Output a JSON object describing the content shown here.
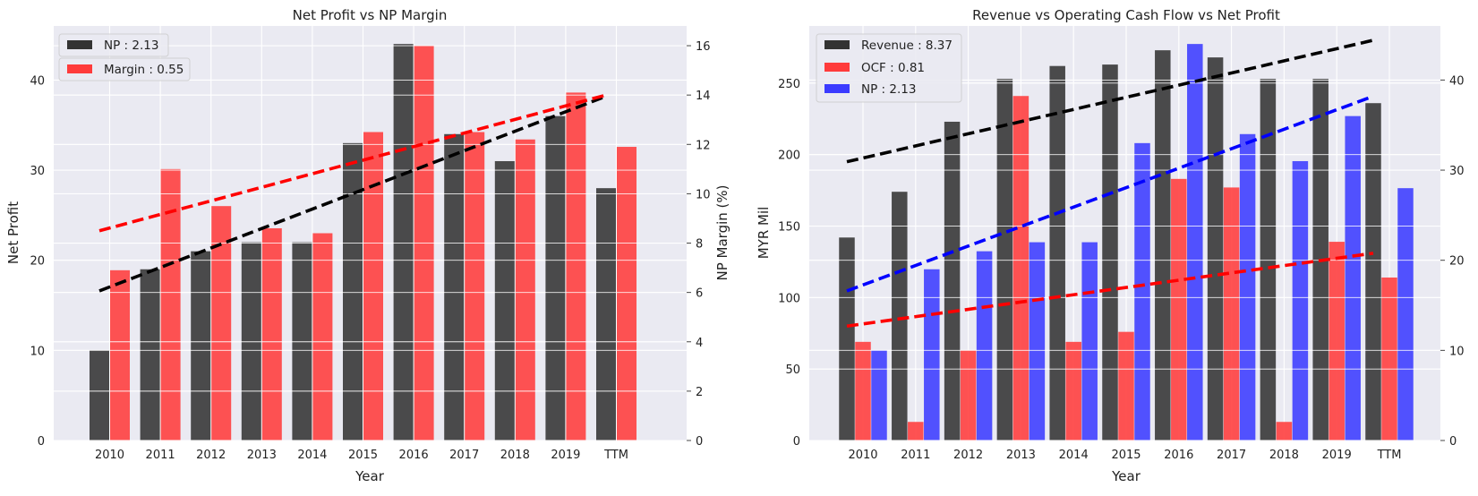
{
  "chart_data": [
    {
      "type": "bar",
      "title": "Net Profit vs NP Margin",
      "xlabel": "Year",
      "ylabel": "Net Profit",
      "y2label": "NP Margin (%)",
      "categories": [
        "2010",
        "2011",
        "2012",
        "2013",
        "2014",
        "2015",
        "2016",
        "2017",
        "2018",
        "2019",
        "TTM"
      ],
      "ylim": [
        0,
        46
      ],
      "y2lim": [
        0,
        16.8
      ],
      "yticks": [
        0,
        10,
        20,
        30,
        40
      ],
      "y2ticks": [
        0,
        2,
        4,
        6,
        8,
        10,
        12,
        14,
        16
      ],
      "grid": true,
      "legend_position": "top-left",
      "series": [
        {
          "name": "NP : 2.13",
          "axis": "left",
          "color": "#333333",
          "values": [
            10,
            19,
            21,
            22,
            22,
            33,
            44,
            34,
            31,
            36,
            28
          ]
        },
        {
          "name": "Margin : 0.55",
          "axis": "right",
          "color": "#ff3b3b",
          "values": [
            6.9,
            11.0,
            9.5,
            8.6,
            8.4,
            12.5,
            16.0,
            12.5,
            12.2,
            14.1,
            11.9
          ]
        }
      ],
      "trendlines": [
        {
          "series": "NP : 2.13",
          "axis": "left",
          "color": "#000000",
          "start": [
            0,
            16.6
          ],
          "end": [
            10,
            38.2
          ]
        },
        {
          "series": "Margin : 0.55",
          "axis": "right",
          "color": "#ff0000",
          "start": [
            0,
            8.5
          ],
          "end": [
            10,
            14.0
          ]
        }
      ]
    },
    {
      "type": "bar",
      "title": "Revenue vs Operating Cash Flow vs Net Profit",
      "xlabel": "Year",
      "ylabel": "MYR Mil",
      "categories": [
        "2010",
        "2011",
        "2012",
        "2013",
        "2014",
        "2015",
        "2016",
        "2017",
        "2018",
        "2019",
        "TTM"
      ],
      "ylim": [
        0,
        290
      ],
      "y2lim": [
        0,
        46
      ],
      "yticks": [
        0,
        50,
        100,
        150,
        200,
        250
      ],
      "y2ticks": [
        0,
        10,
        20,
        30,
        40
      ],
      "grid": true,
      "legend_position": "top-left",
      "series": [
        {
          "name": "Revenue : 8.37",
          "axis": "left",
          "color": "#333333",
          "values": [
            142,
            174,
            223,
            253,
            262,
            263,
            273,
            268,
            253,
            253,
            236
          ]
        },
        {
          "name": "OCF : 0.81",
          "axis": "left",
          "color": "#ff3b3b",
          "values": [
            69,
            13,
            63,
            241,
            69,
            76,
            183,
            177,
            13,
            139,
            114
          ]
        },
        {
          "name": "NP : 2.13",
          "axis": "right",
          "color": "#3b3bff",
          "values": [
            10,
            19,
            21,
            22,
            22,
            33,
            44,
            34,
            31,
            36,
            28
          ]
        }
      ],
      "trendlines": [
        {
          "series": "Revenue : 8.37",
          "axis": "left",
          "color": "#000000",
          "start": [
            0,
            195
          ],
          "end": [
            10,
            280
          ]
        },
        {
          "series": "OCF : 0.81",
          "axis": "left",
          "color": "#ff0000",
          "start": [
            0,
            80
          ],
          "end": [
            10,
            131
          ]
        },
        {
          "series": "NP : 2.13",
          "axis": "right",
          "color": "#0000ff",
          "start": [
            0,
            16.6
          ],
          "end": [
            10,
            38.2
          ]
        }
      ]
    }
  ]
}
